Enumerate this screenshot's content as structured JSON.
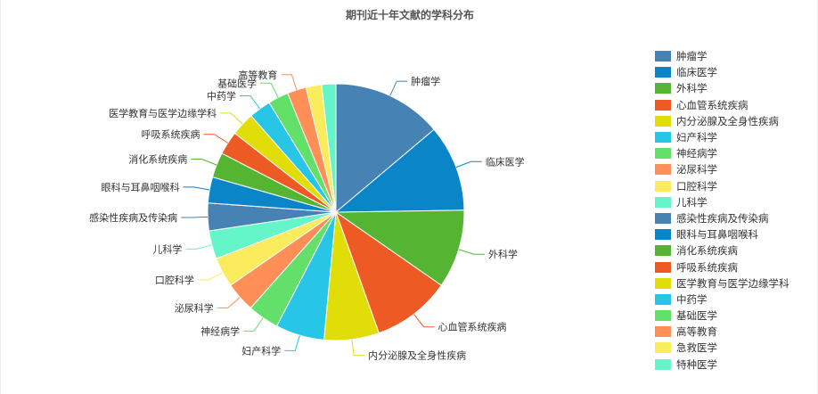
{
  "chart_data": {
    "type": "pie",
    "title": "期刊近十年文献的学科分布",
    "legend_position": "right",
    "slices": [
      {
        "label": "肿瘤学",
        "value": 14.0,
        "color": "#4682b4"
      },
      {
        "label": "临床医学",
        "value": 11.0,
        "color": "#0a85c8"
      },
      {
        "label": "外科学",
        "value": 10.0,
        "color": "#55b432"
      },
      {
        "label": "心血管系统疾病",
        "value": 10.0,
        "color": "#ee5a24"
      },
      {
        "label": "内分泌腺及全身性疾病",
        "value": 7.0,
        "color": "#e0dd08"
      },
      {
        "label": "妇产科学",
        "value": 6.2,
        "color": "#27c6e6"
      },
      {
        "label": "神经病学",
        "value": 4.0,
        "color": "#62e06a"
      },
      {
        "label": "泌尿科学",
        "value": 3.8,
        "color": "#ff8f57"
      },
      {
        "label": "口腔科学",
        "value": 3.8,
        "color": "#fbec5d"
      },
      {
        "label": "儿科学",
        "value": 3.6,
        "color": "#64f5c8"
      },
      {
        "label": "感染性疾病及传染病",
        "value": 3.5,
        "color": "#4682b4"
      },
      {
        "label": "眼科与耳鼻咽喉科",
        "value": 3.3,
        "color": "#0a85c8"
      },
      {
        "label": "消化系统疾病",
        "value": 3.2,
        "color": "#55b432"
      },
      {
        "label": "呼吸系统疾病",
        "value": 3.0,
        "color": "#ee5a24"
      },
      {
        "label": "医学教育与医学边缘学科",
        "value": 3.0,
        "color": "#e0dd08"
      },
      {
        "label": "中药学",
        "value": 2.8,
        "color": "#27c6e6"
      },
      {
        "label": "基础医学",
        "value": 2.6,
        "color": "#62e06a"
      },
      {
        "label": "高等教育",
        "value": 2.4,
        "color": "#ff8f57"
      },
      {
        "label": "急救医学",
        "value": 2.0,
        "color": "#fbec5d"
      },
      {
        "label": "特种医学",
        "value": 1.8,
        "color": "#64f5c8"
      }
    ],
    "pie_labels": [
      "肿瘤学",
      "临床医学",
      "外科学",
      "心血管系统疾病",
      "内分泌腺及全身性疾病",
      "妇产科学",
      "神经病学",
      "泌尿科学",
      "口腔科学",
      "儿科学",
      "感染性疾病及传染病",
      "眼科与耳鼻咽喉科",
      "消化系统疾病",
      "呼吸系统疾病",
      "医学教育与医学边缘学科",
      "中药学",
      "基础医学",
      "高等教育"
    ]
  }
}
